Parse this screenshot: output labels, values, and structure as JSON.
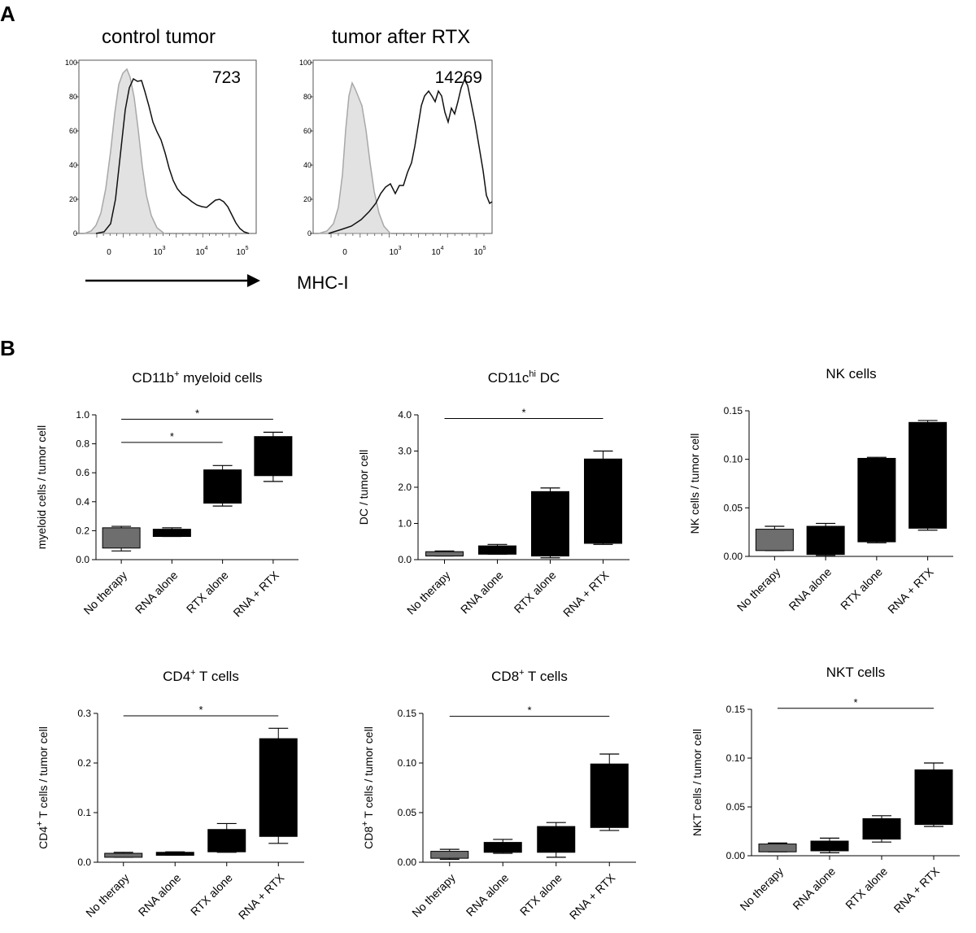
{
  "figure": {
    "panel_a": "A",
    "panel_b": "B",
    "axis_arrow_label": "MHC-I"
  },
  "histograms": [
    {
      "id": "control",
      "title": "control tumor",
      "count": "723",
      "yticks": [
        "0",
        "20",
        "40",
        "60",
        "80",
        "100"
      ],
      "xticks": [
        {
          "base": "0",
          "exp": ""
        },
        {
          "base": "10",
          "exp": "3"
        },
        {
          "base": "10",
          "exp": "4"
        },
        {
          "base": "10",
          "exp": "5"
        }
      ],
      "fill_color": "#e2e2e2"
    },
    {
      "id": "rtx",
      "title": "tumor after RTX",
      "count": "14269",
      "yticks": [
        "0",
        "20",
        "40",
        "60",
        "80",
        "100"
      ],
      "xticks": [
        {
          "base": "0",
          "exp": ""
        },
        {
          "base": "10",
          "exp": "3"
        },
        {
          "base": "10",
          "exp": "4"
        },
        {
          "base": "10",
          "exp": "5"
        }
      ],
      "fill_color": "#e2e2e2"
    }
  ],
  "chart_data": [
    {
      "type": "box",
      "id": "myeloid",
      "title": "CD11b",
      "title_sup": "+",
      "title_rest": " myeloid cells",
      "ylabel": "myeloid cells / tumor cell",
      "ylim": [
        0,
        1.0
      ],
      "yticks": [
        0.0,
        0.2,
        0.4,
        0.6,
        0.8,
        1.0
      ],
      "ytick_labels": [
        "0.0",
        "0.2",
        "0.4",
        "0.6",
        "0.8",
        "1.0"
      ],
      "categories": [
        "No therapy",
        "RNA alone",
        "RTX alone",
        "RNA + RTX"
      ],
      "boxes": [
        {
          "min": 0.06,
          "q1": 0.08,
          "q3": 0.22,
          "max": 0.23,
          "color": "#6e6e6e"
        },
        {
          "min": 0.16,
          "q1": 0.16,
          "q3": 0.21,
          "max": 0.22,
          "color": "#000000"
        },
        {
          "min": 0.37,
          "q1": 0.39,
          "q3": 0.62,
          "max": 0.65,
          "color": "#000000"
        },
        {
          "min": 0.54,
          "q1": 0.58,
          "q3": 0.85,
          "max": 0.88,
          "color": "#000000"
        }
      ],
      "significance": [
        {
          "from": 0,
          "to": 3,
          "y": 0.97,
          "label": "*"
        },
        {
          "from": 0,
          "to": 2,
          "y": 0.81,
          "label": "*"
        }
      ]
    },
    {
      "type": "box",
      "id": "dc",
      "title": "CD11c",
      "title_sup": "hi",
      "title_rest": " DC",
      "ylabel": "DC / tumor cell",
      "ylim": [
        0,
        4.0
      ],
      "yticks": [
        0.0,
        1.0,
        2.0,
        3.0,
        4.0
      ],
      "ytick_labels": [
        "0.0",
        "1.0",
        "2.0",
        "3.0",
        "4.0"
      ],
      "categories": [
        "No therapy",
        "RNA alone",
        "RTX alone",
        "RNA + RTX"
      ],
      "boxes": [
        {
          "min": 0.1,
          "q1": 0.1,
          "q3": 0.22,
          "max": 0.24,
          "color": "#6e6e6e"
        },
        {
          "min": 0.15,
          "q1": 0.15,
          "q3": 0.38,
          "max": 0.42,
          "color": "#000000"
        },
        {
          "min": 0.05,
          "q1": 0.1,
          "q3": 1.88,
          "max": 1.98,
          "color": "#000000"
        },
        {
          "min": 0.42,
          "q1": 0.45,
          "q3": 2.78,
          "max": 3.0,
          "color": "#000000"
        }
      ],
      "significance": [
        {
          "from": 0,
          "to": 3,
          "y": 3.9,
          "label": "*"
        }
      ]
    },
    {
      "type": "box",
      "id": "nk",
      "title": "NK cells",
      "title_sup": "",
      "title_rest": "",
      "ylabel": "NK cells / tumor cell",
      "ylim": [
        0,
        0.15
      ],
      "yticks": [
        0.0,
        0.05,
        0.1,
        0.15
      ],
      "ytick_labels": [
        "0.00",
        "0.05",
        "0.10",
        "0.15"
      ],
      "categories": [
        "No therapy",
        "RNA alone",
        "RTX alone",
        "RNA + RTX"
      ],
      "boxes": [
        {
          "min": 0.006,
          "q1": 0.006,
          "q3": 0.028,
          "max": 0.031,
          "color": "#6e6e6e"
        },
        {
          "min": 0.001,
          "q1": 0.002,
          "q3": 0.031,
          "max": 0.034,
          "color": "#000000"
        },
        {
          "min": 0.014,
          "q1": 0.015,
          "q3": 0.101,
          "max": 0.102,
          "color": "#000000"
        },
        {
          "min": 0.027,
          "q1": 0.029,
          "q3": 0.138,
          "max": 0.14,
          "color": "#000000"
        }
      ],
      "significance": []
    },
    {
      "type": "box",
      "id": "cd4",
      "title": "CD4",
      "title_sup": "+",
      "title_rest": " T cells",
      "ylabel": "CD4+ T cells / tumor cell",
      "ylabel_main": "CD4",
      "ylabel_sup": "+",
      "ylabel_rest": " T cells / tumor cell",
      "ylim": [
        0,
        0.3
      ],
      "yticks": [
        0.0,
        0.1,
        0.2,
        0.3
      ],
      "ytick_labels": [
        "0.0",
        "0.1",
        "0.2",
        "0.3"
      ],
      "categories": [
        "No therapy",
        "RNA alone",
        "RTX alone",
        "RNA + RTX"
      ],
      "boxes": [
        {
          "min": 0.01,
          "q1": 0.01,
          "q3": 0.018,
          "max": 0.02,
          "color": "#6e6e6e"
        },
        {
          "min": 0.014,
          "q1": 0.014,
          "q3": 0.02,
          "max": 0.021,
          "color": "#000000"
        },
        {
          "min": 0.02,
          "q1": 0.021,
          "q3": 0.066,
          "max": 0.078,
          "color": "#000000"
        },
        {
          "min": 0.038,
          "q1": 0.052,
          "q3": 0.249,
          "max": 0.27,
          "color": "#000000"
        }
      ],
      "significance": [
        {
          "from": 0,
          "to": 3,
          "y": 0.295,
          "label": "*"
        }
      ]
    },
    {
      "type": "box",
      "id": "cd8",
      "title": "CD8",
      "title_sup": "+",
      "title_rest": " T cells",
      "ylabel": "CD8+ T cells / tumor cell",
      "ylabel_main": "CD8",
      "ylabel_sup": "+",
      "ylabel_rest": " T cells / tumor cell",
      "ylim": [
        0,
        0.15
      ],
      "yticks": [
        0.0,
        0.05,
        0.1,
        0.15
      ],
      "ytick_labels": [
        "0.00",
        "0.05",
        "0.10",
        "0.15"
      ],
      "categories": [
        "No therapy",
        "RNA alone",
        "RTX alone",
        "RNA + RTX"
      ],
      "boxes": [
        {
          "min": 0.003,
          "q1": 0.004,
          "q3": 0.011,
          "max": 0.013,
          "color": "#6e6e6e"
        },
        {
          "min": 0.009,
          "q1": 0.01,
          "q3": 0.02,
          "max": 0.023,
          "color": "#000000"
        },
        {
          "min": 0.005,
          "q1": 0.01,
          "q3": 0.036,
          "max": 0.04,
          "color": "#000000"
        },
        {
          "min": 0.032,
          "q1": 0.035,
          "q3": 0.099,
          "max": 0.109,
          "color": "#000000"
        }
      ],
      "significance": [
        {
          "from": 0,
          "to": 3,
          "y": 0.147,
          "label": "*"
        }
      ]
    },
    {
      "type": "box",
      "id": "nkt",
      "title": "NKT cells",
      "title_sup": "",
      "title_rest": "",
      "ylabel": "NKT cells / tumor cell",
      "ylim": [
        0,
        0.15
      ],
      "yticks": [
        0.0,
        0.05,
        0.1,
        0.15
      ],
      "ytick_labels": [
        "0.00",
        "0.05",
        "0.10",
        "0.15"
      ],
      "categories": [
        "No therapy",
        "RNA alone",
        "RTX alone",
        "RNA + RTX"
      ],
      "boxes": [
        {
          "min": 0.004,
          "q1": 0.004,
          "q3": 0.012,
          "max": 0.013,
          "color": "#6e6e6e"
        },
        {
          "min": 0.003,
          "q1": 0.005,
          "q3": 0.015,
          "max": 0.018,
          "color": "#000000"
        },
        {
          "min": 0.014,
          "q1": 0.017,
          "q3": 0.038,
          "max": 0.041,
          "color": "#000000"
        },
        {
          "min": 0.03,
          "q1": 0.032,
          "q3": 0.088,
          "max": 0.095,
          "color": "#000000"
        }
      ],
      "significance": [
        {
          "from": 0,
          "to": 3,
          "y": 0.151,
          "label": "*"
        }
      ]
    }
  ]
}
